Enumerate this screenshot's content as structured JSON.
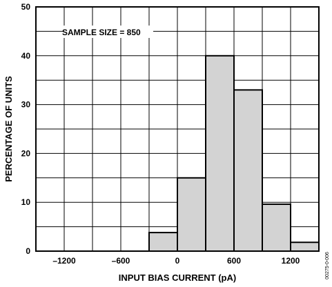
{
  "chart_data": {
    "type": "bar",
    "title": "",
    "annotation": "SAMPLE SIZE = 850",
    "xlabel": "INPUT BIAS CURRENT (pA)",
    "ylabel": "PERCENTAGE OF UNITS",
    "xlim": [
      -1500,
      1500
    ],
    "ylim": [
      0,
      50
    ],
    "xticks": [
      -1200,
      -600,
      0,
      600,
      1200
    ],
    "xtick_labels": [
      "–1200",
      "–600",
      "0",
      "600",
      "1200"
    ],
    "yticks": [
      0,
      10,
      20,
      30,
      40,
      50
    ],
    "ytick_labels": [
      "0",
      "10",
      "20",
      "30",
      "40",
      "50"
    ],
    "bin_edges": [
      -300,
      0,
      300,
      600,
      900,
      1200,
      1500
    ],
    "values": [
      3.8,
      15,
      40,
      33,
      9.6,
      1.8
    ],
    "bar_color": "#d3d3d3",
    "grid": true,
    "watermark": "00275-0-006"
  }
}
